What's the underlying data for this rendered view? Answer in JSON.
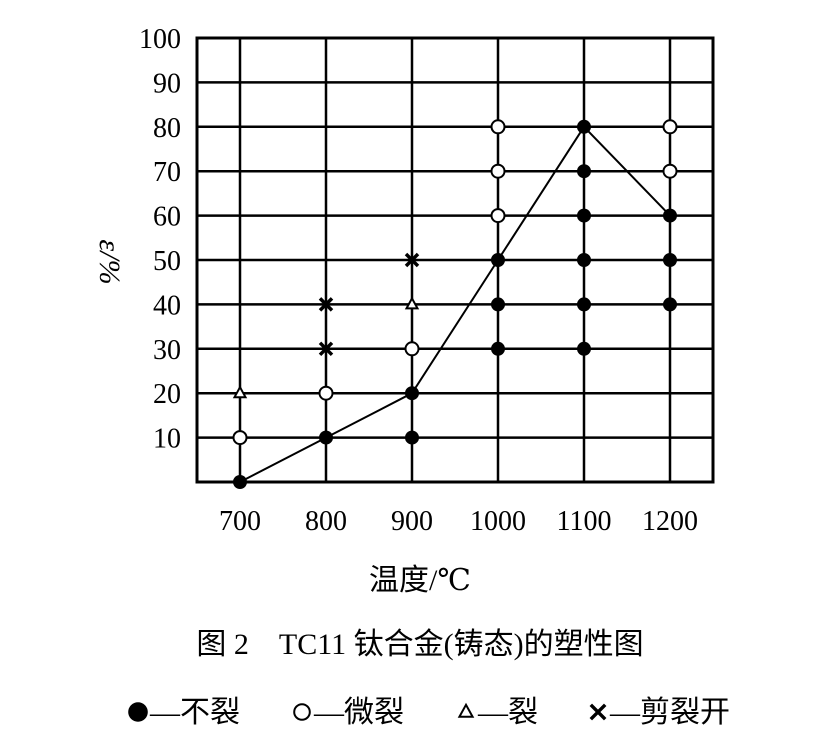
{
  "chart_data": {
    "type": "scatter",
    "title": "图 2　TC11 钛合金(铸态)的塑性图",
    "xlabel": "温度/℃",
    "ylabel": "ε/%",
    "x_ticks": [
      700,
      800,
      900,
      1000,
      1100,
      1200
    ],
    "y_ticks": [
      10,
      20,
      30,
      40,
      50,
      60,
      70,
      80,
      90,
      100
    ],
    "xlim": [
      650,
      1250
    ],
    "ylim": [
      0,
      100
    ],
    "grid": true,
    "legend_position": "bottom",
    "legend": [
      {
        "marker": "filled-circle",
        "symbol": "●",
        "label": "—不裂"
      },
      {
        "marker": "open-circle",
        "symbol": "○",
        "label": "—微裂"
      },
      {
        "marker": "triangle",
        "symbol": "△",
        "label": "—裂"
      },
      {
        "marker": "cross",
        "symbol": "×",
        "label": "—剪裂开"
      }
    ],
    "series": [
      {
        "marker": "filled-circle",
        "points": [
          [
            700,
            0
          ],
          [
            800,
            10
          ],
          [
            900,
            10
          ],
          [
            900,
            20
          ],
          [
            1000,
            30
          ],
          [
            1000,
            40
          ],
          [
            1000,
            50
          ],
          [
            1100,
            30
          ],
          [
            1100,
            40
          ],
          [
            1100,
            50
          ],
          [
            1100,
            60
          ],
          [
            1100,
            70
          ],
          [
            1100,
            80
          ],
          [
            1200,
            40
          ],
          [
            1200,
            50
          ],
          [
            1200,
            60
          ]
        ]
      },
      {
        "marker": "open-circle",
        "points": [
          [
            700,
            10
          ],
          [
            800,
            20
          ],
          [
            900,
            30
          ],
          [
            1000,
            60
          ],
          [
            1000,
            70
          ],
          [
            1000,
            80
          ],
          [
            1200,
            70
          ],
          [
            1200,
            80
          ]
        ]
      },
      {
        "marker": "triangle",
        "points": [
          [
            700,
            20
          ],
          [
            900,
            40
          ]
        ]
      },
      {
        "marker": "cross",
        "points": [
          [
            800,
            30
          ],
          [
            800,
            40
          ],
          [
            900,
            50
          ]
        ]
      }
    ],
    "boundary_line": [
      [
        700,
        0
      ],
      [
        800,
        10
      ],
      [
        900,
        20
      ],
      [
        1000,
        50
      ],
      [
        1100,
        80
      ],
      [
        1200,
        60
      ]
    ]
  }
}
